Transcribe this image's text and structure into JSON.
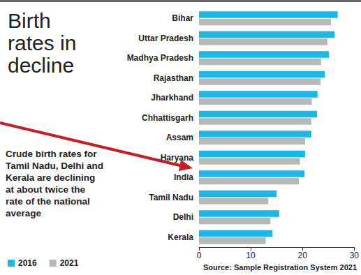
{
  "chart_data": {
    "type": "bar",
    "orientation": "horizontal",
    "title": "Birth rates in decline",
    "annotations": [
      "Crude birth rates for Tamil Nadu, Delhi and Kerala are declining at about twice the rate of the national average",
      "Source: Sample Registration System 2021"
    ],
    "categories": [
      "Bihar",
      "Uttar Pradesh",
      "Madhya Pradesh",
      "Rajasthan",
      "Jharkhand",
      "Chhattisgarh",
      "Assam",
      "Haryana",
      "India",
      "Tamil Nadu",
      "Delhi",
      "Kerala"
    ],
    "series": [
      {
        "name": "2016",
        "color": "#1ab8e8",
        "values": [
          26.8,
          26.2,
          25.1,
          24.3,
          22.9,
          22.8,
          21.7,
          20.5,
          20.4,
          15.0,
          15.5,
          14.2
        ]
      },
      {
        "name": "2021",
        "color": "#b8b8b8",
        "values": [
          25.5,
          24.8,
          23.6,
          23.5,
          21.8,
          21.7,
          20.5,
          19.5,
          19.3,
          13.4,
          13.8,
          12.9
        ]
      }
    ],
    "xlim": [
      0,
      30
    ],
    "xticks": [
      0,
      10,
      20,
      30
    ],
    "grid": false,
    "legend": "bottom-left"
  }
}
